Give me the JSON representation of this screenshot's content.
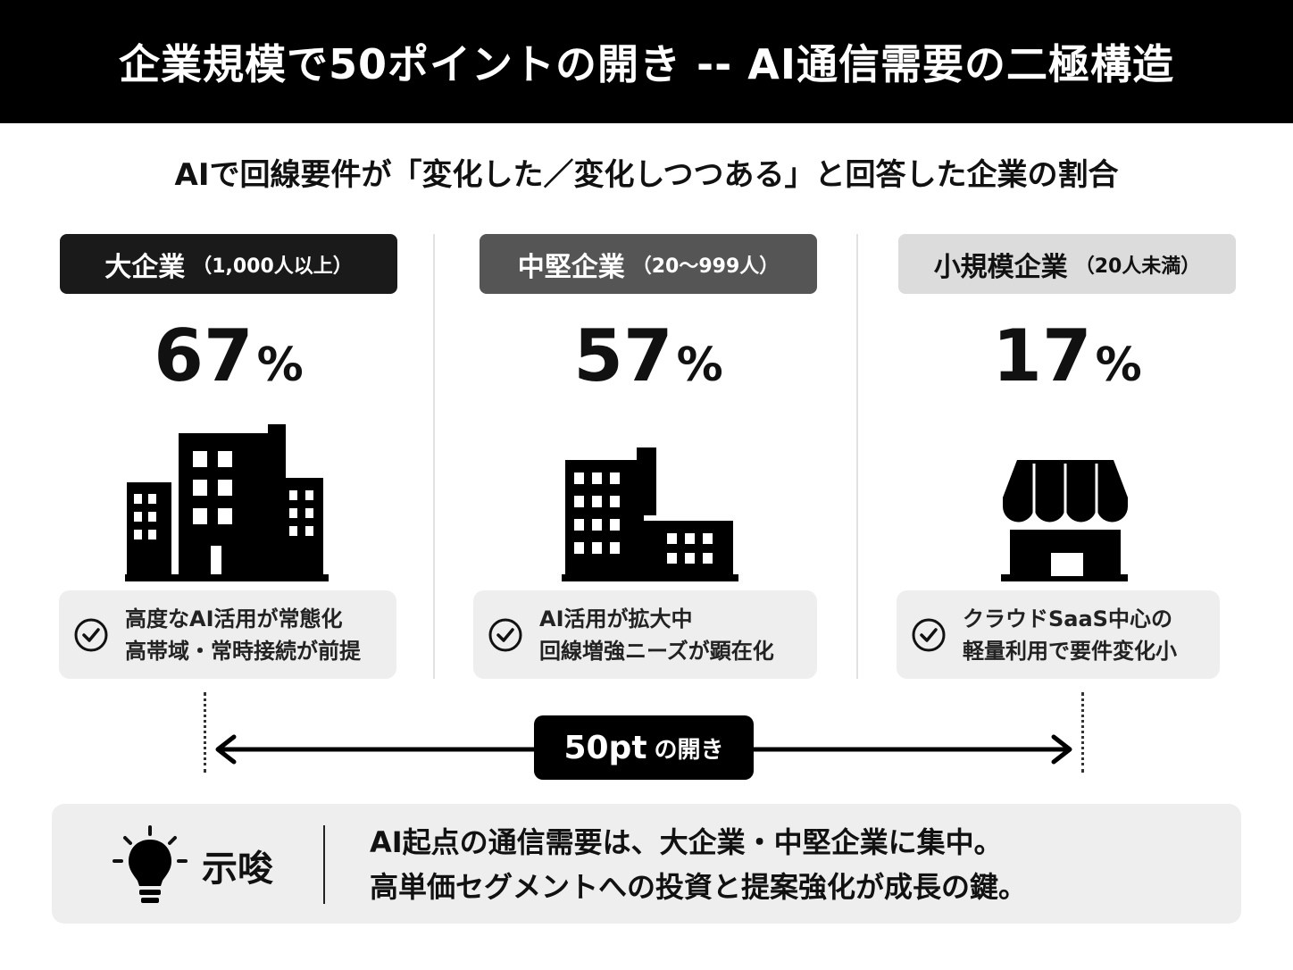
{
  "header": {
    "title": "企業規模で50ポイントの開き -- AI通信需要の二極構造"
  },
  "subtitle": "AIで回線要件が「変化した／変化しつつある」と回答した企業の割合",
  "segments": [
    {
      "name": "大企業",
      "range": "（1,000人以上）",
      "percent": "67",
      "percent_unit": "%",
      "value": 67,
      "icon": "large-office-buildings-icon",
      "note": [
        "高度なAI活用が常態化",
        "高帯域・常時接続が前提"
      ]
    },
    {
      "name": "中堅企業",
      "range": "（20〜999人）",
      "percent": "57",
      "percent_unit": "%",
      "value": 57,
      "icon": "mid-office-building-icon",
      "note": [
        "AI活用が拡大中",
        "回線増強ニーズが顕在化"
      ]
    },
    {
      "name": "小規模企業",
      "range": "（20人未満）",
      "percent": "17",
      "percent_unit": "%",
      "value": 17,
      "icon": "small-shop-icon",
      "note": [
        "クラウドSaaS中心の",
        "軽量利用で要件変化小"
      ]
    }
  ],
  "gap": {
    "value": "50pt",
    "label": "の開き"
  },
  "insight": {
    "label": "示唆",
    "icon": "lightbulb-icon",
    "lines": [
      "AI起点の通信需要は、大企業・中堅企業に集中。",
      "高単価セグメントへの投資と提案強化が成長の鍵。"
    ]
  },
  "colors": {
    "dark": "#1a1a1a",
    "mid": "#555555",
    "light": "#dcdcdc",
    "panel": "#eeeeee"
  }
}
